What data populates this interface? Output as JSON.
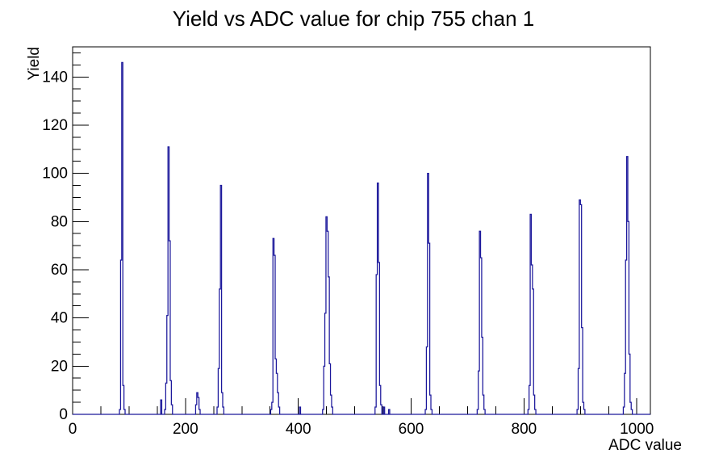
{
  "chart_data": {
    "type": "bar",
    "title": "Yield vs ADC value for chip 755 chan 1",
    "xlabel": "ADC value",
    "ylabel": "Yield",
    "xlim": [
      0,
      1024
    ],
    "ylim": [
      0,
      152.5
    ],
    "x_major_ticks": [
      0,
      200,
      400,
      600,
      800,
      1000
    ],
    "x_minor_step": 50,
    "y_major_ticks": [
      0,
      20,
      40,
      60,
      80,
      100,
      120,
      140
    ],
    "y_minor_step": 5,
    "grid": false,
    "legend": "none",
    "bin_width": 2,
    "line_color": "#1b179b",
    "axis_color": "#000000",
    "background": "#ffffff",
    "bars": [
      [
        84,
        2
      ],
      [
        86,
        64
      ],
      [
        88,
        146
      ],
      [
        90,
        12
      ],
      [
        92,
        2
      ],
      [
        157,
        6
      ],
      [
        164,
        2
      ],
      [
        166,
        13
      ],
      [
        168,
        41
      ],
      [
        170,
        111
      ],
      [
        172,
        72
      ],
      [
        174,
        14
      ],
      [
        176,
        4
      ],
      [
        219,
        4
      ],
      [
        221,
        9
      ],
      [
        223,
        7
      ],
      [
        225,
        2
      ],
      [
        257,
        3
      ],
      [
        259,
        19
      ],
      [
        261,
        52
      ],
      [
        263,
        95
      ],
      [
        265,
        9
      ],
      [
        267,
        3
      ],
      [
        352,
        2
      ],
      [
        354,
        5
      ],
      [
        356,
        73
      ],
      [
        358,
        66
      ],
      [
        360,
        23
      ],
      [
        362,
        17
      ],
      [
        364,
        9
      ],
      [
        366,
        3
      ],
      [
        403,
        3
      ],
      [
        444,
        2
      ],
      [
        446,
        20
      ],
      [
        448,
        42
      ],
      [
        450,
        82
      ],
      [
        452,
        76
      ],
      [
        454,
        57
      ],
      [
        456,
        21
      ],
      [
        458,
        8
      ],
      [
        460,
        3
      ],
      [
        537,
        3
      ],
      [
        539,
        58
      ],
      [
        541,
        96
      ],
      [
        543,
        63
      ],
      [
        545,
        12
      ],
      [
        547,
        4
      ],
      [
        552,
        3
      ],
      [
        561,
        2
      ],
      [
        626,
        2
      ],
      [
        628,
        28
      ],
      [
        630,
        100
      ],
      [
        632,
        71
      ],
      [
        634,
        8
      ],
      [
        636,
        2
      ],
      [
        718,
        2
      ],
      [
        720,
        18
      ],
      [
        722,
        76
      ],
      [
        724,
        65
      ],
      [
        726,
        32
      ],
      [
        728,
        8
      ],
      [
        730,
        2
      ],
      [
        808,
        2
      ],
      [
        810,
        12
      ],
      [
        812,
        83
      ],
      [
        814,
        62
      ],
      [
        816,
        52
      ],
      [
        818,
        8
      ],
      [
        820,
        2
      ],
      [
        895,
        2
      ],
      [
        897,
        19
      ],
      [
        899,
        89
      ],
      [
        901,
        87
      ],
      [
        903,
        36
      ],
      [
        905,
        5
      ],
      [
        907,
        2
      ],
      [
        977,
        3
      ],
      [
        979,
        17
      ],
      [
        981,
        64
      ],
      [
        983,
        107
      ],
      [
        985,
        80
      ],
      [
        987,
        25
      ],
      [
        989,
        5
      ],
      [
        991,
        2
      ]
    ]
  }
}
